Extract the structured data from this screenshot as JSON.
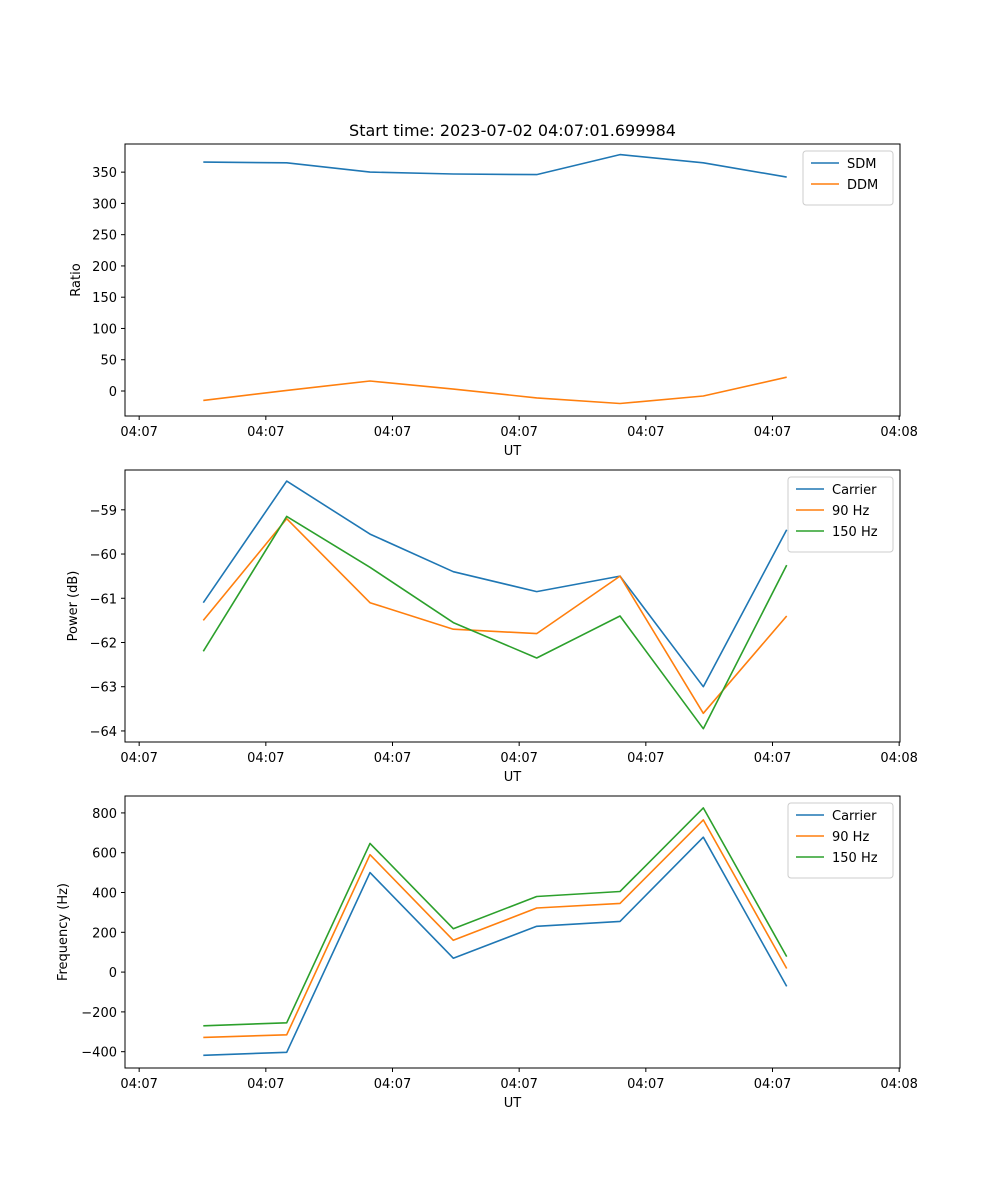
{
  "chart_data": [
    {
      "type": "line",
      "title": "Start time: 2023-07-02 04:07:01.699984",
      "xlabel": "UT",
      "ylabel": "Ratio",
      "xlim": [
        -0.5,
        8.8
      ],
      "ylim": [
        -40,
        395
      ],
      "xticks": [
        {
          "v": -0.33,
          "label": "04:07"
        },
        {
          "v": 1.19,
          "label": "04:07"
        },
        {
          "v": 2.71,
          "label": "04:07"
        },
        {
          "v": 4.23,
          "label": "04:07"
        },
        {
          "v": 5.75,
          "label": "04:07"
        },
        {
          "v": 7.27,
          "label": "04:07"
        },
        {
          "v": 8.79,
          "label": "04:08"
        }
      ],
      "yticks": [
        {
          "v": 0,
          "label": "0"
        },
        {
          "v": 50,
          "label": "50"
        },
        {
          "v": 100,
          "label": "100"
        },
        {
          "v": 150,
          "label": "150"
        },
        {
          "v": 200,
          "label": "200"
        },
        {
          "v": 250,
          "label": "250"
        },
        {
          "v": 300,
          "label": "300"
        },
        {
          "v": 350,
          "label": "350"
        }
      ],
      "x": [
        0.44,
        1.44,
        2.44,
        3.44,
        4.44,
        5.44,
        6.44,
        7.44
      ],
      "legend_position": "top-right",
      "series": [
        {
          "name": "SDM",
          "color": "#1f77b4",
          "values": [
            366,
            365,
            350,
            347,
            346,
            378,
            365,
            342
          ]
        },
        {
          "name": "DDM",
          "color": "#ff7f0e",
          "values": [
            -15,
            1,
            16,
            3,
            -11,
            -20,
            -8,
            22
          ]
        }
      ]
    },
    {
      "type": "line",
      "title": "",
      "xlabel": "UT",
      "ylabel": "Power (dB)",
      "xlim": [
        -0.5,
        8.8
      ],
      "ylim": [
        -64.25,
        -58.1
      ],
      "xticks": [
        {
          "v": -0.33,
          "label": "04:07"
        },
        {
          "v": 1.19,
          "label": "04:07"
        },
        {
          "v": 2.71,
          "label": "04:07"
        },
        {
          "v": 4.23,
          "label": "04:07"
        },
        {
          "v": 5.75,
          "label": "04:07"
        },
        {
          "v": 7.27,
          "label": "04:07"
        },
        {
          "v": 8.79,
          "label": "04:08"
        }
      ],
      "yticks": [
        {
          "v": -64,
          "label": "−64"
        },
        {
          "v": -63,
          "label": "−63"
        },
        {
          "v": -62,
          "label": "−62"
        },
        {
          "v": -61,
          "label": "−61"
        },
        {
          "v": -60,
          "label": "−60"
        },
        {
          "v": -59,
          "label": "−59"
        }
      ],
      "x": [
        0.44,
        1.44,
        2.44,
        3.44,
        4.44,
        5.44,
        6.44,
        7.44
      ],
      "legend_position": "top-right",
      "series": [
        {
          "name": "Carrier",
          "color": "#1f77b4",
          "values": [
            -61.1,
            -58.35,
            -59.55,
            -60.4,
            -60.85,
            -60.5,
            -63.0,
            -59.45
          ]
        },
        {
          "name": "90 Hz",
          "color": "#ff7f0e",
          "values": [
            -61.5,
            -59.2,
            -61.1,
            -61.7,
            -61.8,
            -60.5,
            -63.6,
            -61.4
          ]
        },
        {
          "name": "150 Hz",
          "color": "#2ca02c",
          "values": [
            -62.2,
            -59.15,
            -60.3,
            -61.55,
            -62.35,
            -61.4,
            -63.95,
            -60.25
          ]
        }
      ]
    },
    {
      "type": "line",
      "title": "",
      "xlabel": "UT",
      "ylabel": "Frequency (Hz)",
      "xlim": [
        -0.5,
        8.8
      ],
      "ylim": [
        -482,
        885
      ],
      "xticks": [
        {
          "v": -0.33,
          "label": "04:07"
        },
        {
          "v": 1.19,
          "label": "04:07"
        },
        {
          "v": 2.71,
          "label": "04:07"
        },
        {
          "v": 4.23,
          "label": "04:07"
        },
        {
          "v": 5.75,
          "label": "04:07"
        },
        {
          "v": 7.27,
          "label": "04:07"
        },
        {
          "v": 8.79,
          "label": "04:08"
        }
      ],
      "yticks": [
        {
          "v": -400,
          "label": "−400"
        },
        {
          "v": -200,
          "label": "−200"
        },
        {
          "v": 0,
          "label": "0"
        },
        {
          "v": 200,
          "label": "200"
        },
        {
          "v": 400,
          "label": "400"
        },
        {
          "v": 600,
          "label": "600"
        },
        {
          "v": 800,
          "label": "800"
        }
      ],
      "x": [
        0.44,
        1.44,
        2.44,
        3.44,
        4.44,
        5.44,
        6.44,
        7.44
      ],
      "legend_position": "top-right",
      "series": [
        {
          "name": "Carrier",
          "color": "#1f77b4",
          "values": [
            -418,
            -403,
            500,
            70,
            230,
            255,
            678,
            -72
          ]
        },
        {
          "name": "90 Hz",
          "color": "#ff7f0e",
          "values": [
            -328,
            -315,
            590,
            160,
            322,
            345,
            765,
            18
          ]
        },
        {
          "name": "150 Hz",
          "color": "#2ca02c",
          "values": [
            -270,
            -255,
            647,
            218,
            380,
            405,
            825,
            78
          ]
        }
      ]
    }
  ]
}
